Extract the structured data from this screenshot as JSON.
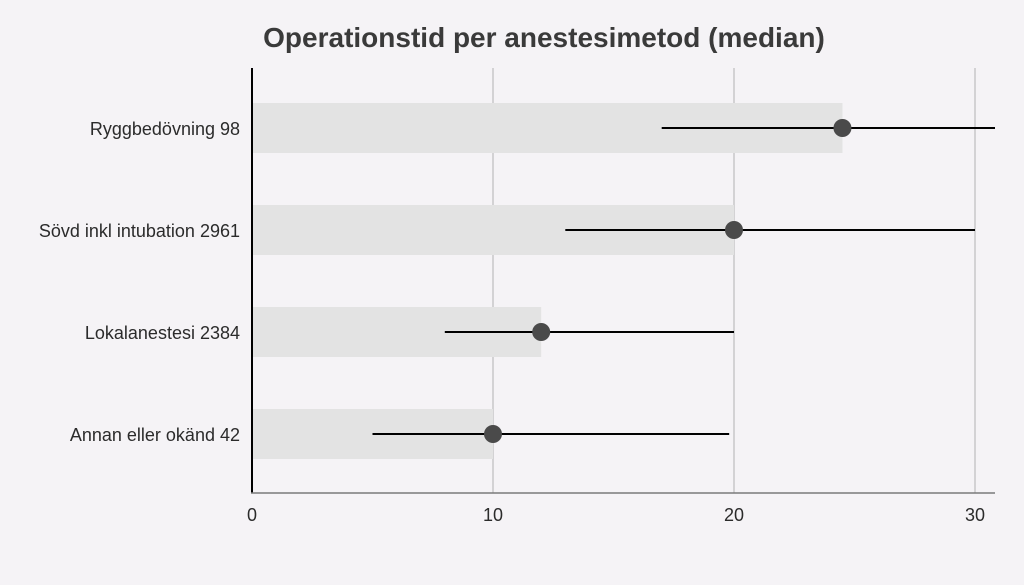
{
  "chart_data": {
    "type": "bar",
    "title": "Operationstid per anestesimetod (median)",
    "orientation": "horizontal",
    "categories": [
      "Ryggbedövning 98",
      "Sövd inkl intubation 2961",
      "Lokalanestesi 2384",
      "Annan eller okänd 42"
    ],
    "series": [
      {
        "values": [
          24.5,
          20,
          12,
          10
        ],
        "intervals": [
          [
            17,
            31
          ],
          [
            13,
            30
          ],
          [
            8,
            20
          ],
          [
            5,
            19.8
          ]
        ]
      }
    ],
    "xlim": [
      0,
      31
    ],
    "xticks": [
      0,
      10,
      20,
      30
    ],
    "xlabel": "",
    "ylabel": "",
    "grid": "vertical",
    "legend": "none",
    "colors": {
      "background": "#f5f3f6",
      "bar": "#e3e3e3",
      "point": "#4a4a4a",
      "interval": "#000000",
      "grid": "#c8c8c8",
      "axis": "#7a7a7a",
      "text": "#2b2b2b",
      "title": "#3a3a3a"
    }
  }
}
